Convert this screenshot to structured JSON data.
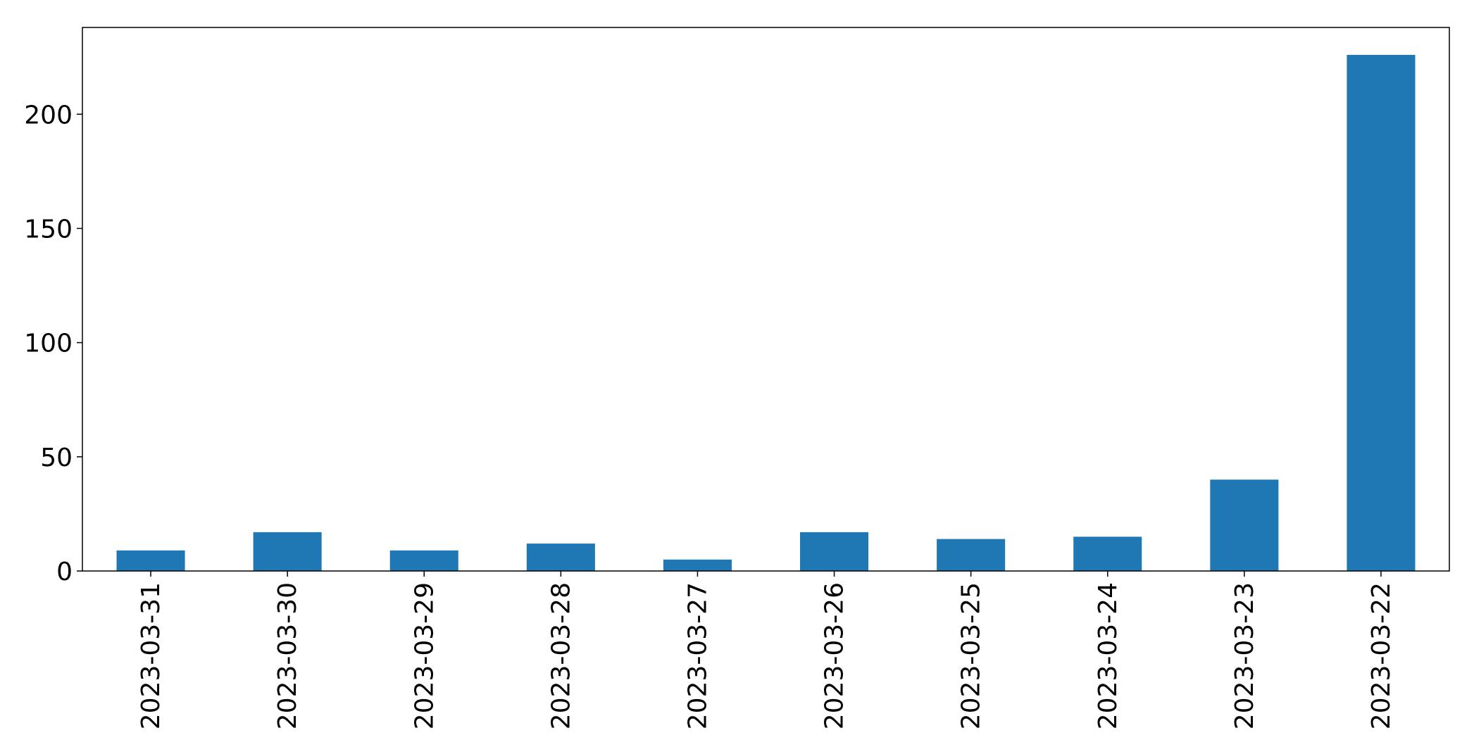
{
  "chart_data": {
    "type": "bar",
    "title": "",
    "xlabel": "",
    "ylabel": "",
    "categories": [
      "2023-03-31",
      "2023-03-30",
      "2023-03-29",
      "2023-03-28",
      "2023-03-27",
      "2023-03-26",
      "2023-03-25",
      "2023-03-24",
      "2023-03-23",
      "2023-03-22"
    ],
    "values": [
      9,
      17,
      9,
      12,
      5,
      17,
      14,
      15,
      40,
      226
    ],
    "ylim": [
      0,
      238
    ],
    "yticks": [
      0,
      50,
      100,
      150,
      200
    ],
    "ytick_labels": [
      "0",
      "50",
      "100",
      "150",
      "200"
    ],
    "bar_color": "#1f77b4",
    "grid": false,
    "legend": "none",
    "xtick_rotation": "vertical"
  }
}
